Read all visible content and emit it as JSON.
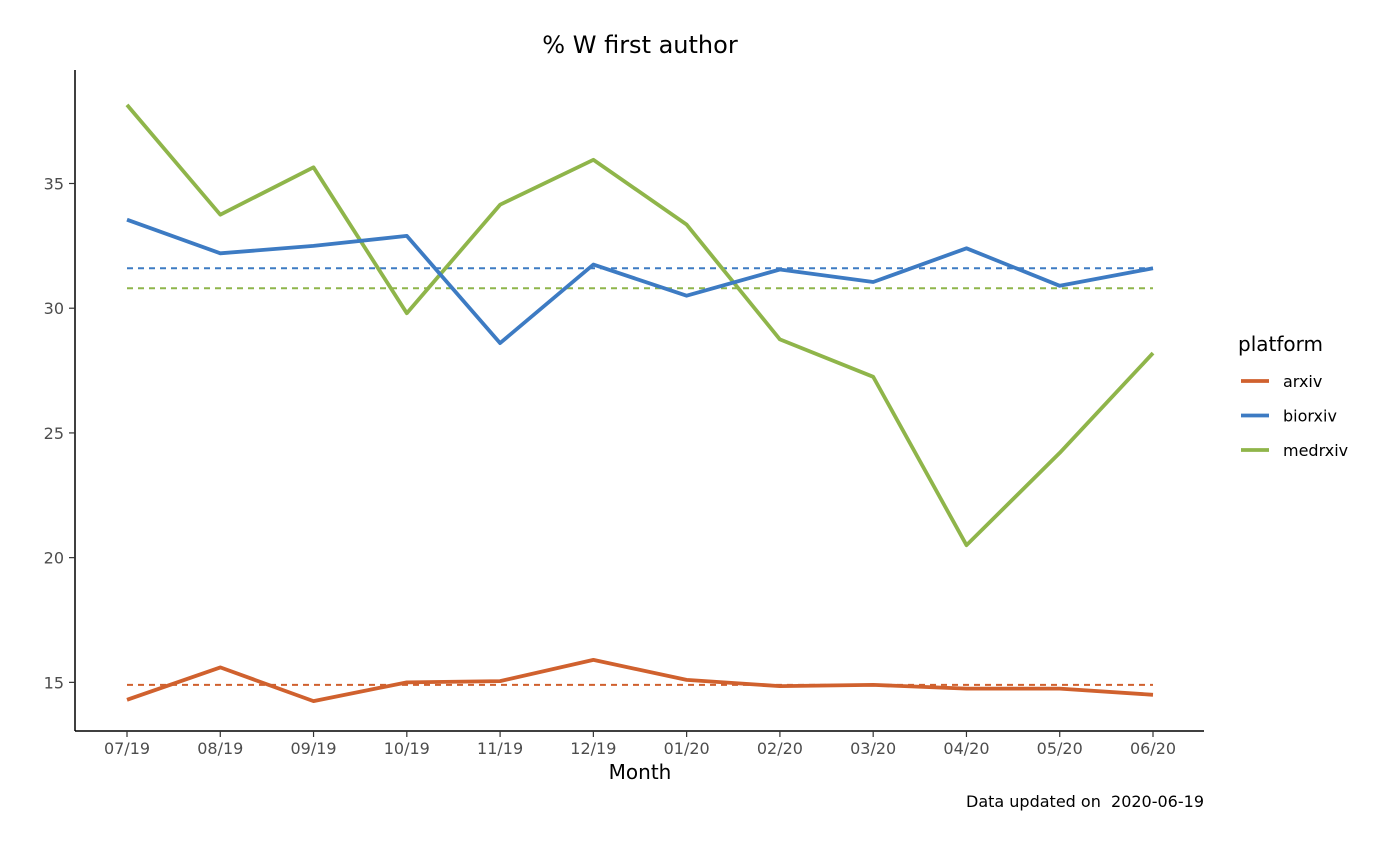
{
  "chart_data": {
    "type": "line",
    "title": "% W first author",
    "xlabel": "Month",
    "ylabel": "",
    "caption": "Data updated on  2020-06-19",
    "categories": [
      "07/19",
      "08/19",
      "09/19",
      "10/19",
      "11/19",
      "12/19",
      "01/20",
      "02/20",
      "03/20",
      "04/20",
      "05/20",
      "06/20"
    ],
    "ylim": [
      13.05,
      39.55
    ],
    "yticks": [
      15,
      20,
      25,
      30,
      35
    ],
    "grid": false,
    "legend": {
      "title": "platform",
      "position": "right"
    },
    "series": [
      {
        "name": "arxiv",
        "color": "#d0612e",
        "values": [
          14.3,
          15.6,
          14.25,
          15.0,
          15.05,
          15.9,
          15.1,
          14.85,
          14.9,
          14.75,
          14.75,
          14.5
        ],
        "mean": 14.9
      },
      {
        "name": "biorxiv",
        "color": "#3d7bc3",
        "values": [
          33.55,
          32.2,
          32.5,
          32.9,
          28.6,
          31.75,
          30.5,
          31.55,
          31.05,
          32.4,
          30.9,
          31.6
        ],
        "mean": 31.6
      },
      {
        "name": "medrxiv",
        "color": "#8fb54a",
        "values": [
          38.15,
          33.75,
          35.65,
          29.8,
          34.15,
          35.95,
          33.35,
          28.75,
          27.25,
          20.5,
          24.2,
          28.2
        ],
        "mean": 30.8
      }
    ]
  }
}
